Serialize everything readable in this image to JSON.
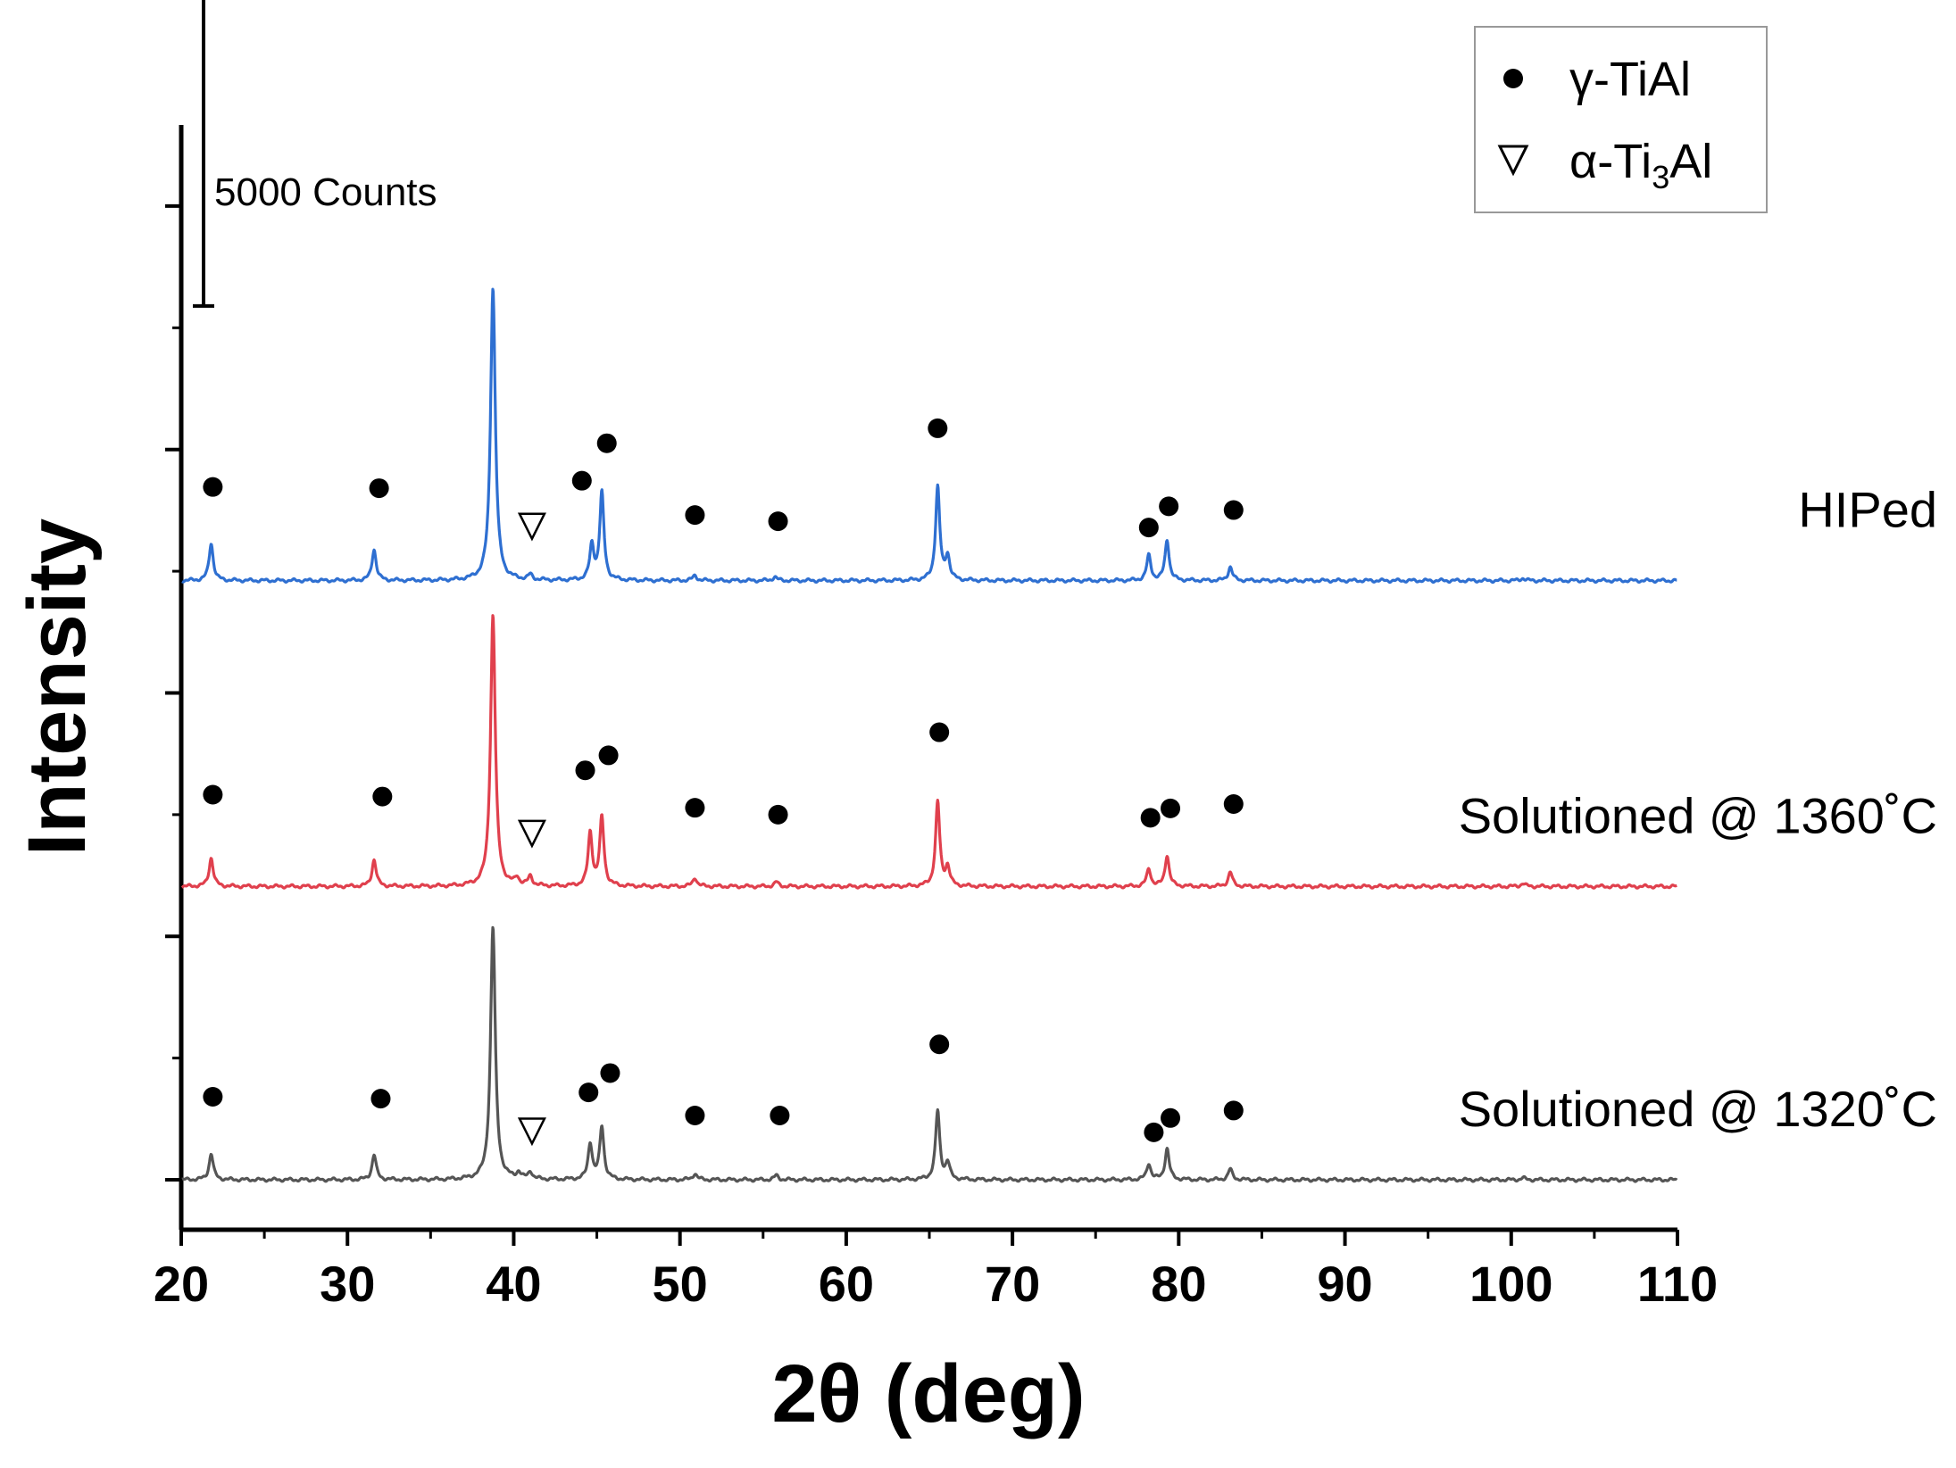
{
  "chart_data": {
    "type": "line",
    "title": "",
    "xlabel": "2θ (deg)",
    "ylabel": "Intensity",
    "xlim": [
      20,
      110
    ],
    "ylim": [
      -800,
      16900
    ],
    "x_ticks": [
      20,
      30,
      40,
      50,
      60,
      70,
      80,
      90,
      100,
      110
    ],
    "x_tick_labels": [
      "20",
      "30",
      "40",
      "50",
      "60",
      "70",
      "80",
      "90",
      "100",
      "110"
    ],
    "x_minor_step": 5,
    "y_tick_values": [
      0,
      1950,
      3900,
      5850,
      7800,
      9750,
      11700,
      13650,
      15600
    ],
    "scale_bar": {
      "label": "5000 Counts",
      "counts": 5000,
      "base": 14000
    },
    "legend": {
      "position": "top-right",
      "entries": [
        {
          "symbol": "circle",
          "label": "γ-TiAl",
          "label_prefix": "γ-TiAl",
          "label_sub": "",
          "label_suffix": ""
        },
        {
          "symbol": "triangle-down",
          "label": "α-Ti3Al",
          "label_prefix": "α-Ti",
          "label_sub": "3",
          "label_suffix": "Al"
        }
      ]
    },
    "series": [
      {
        "name": "HIPed",
        "label": "HIPed",
        "color": "#2e6fd1",
        "offset": 9600,
        "peaks": [
          [
            21.8,
            600
          ],
          [
            31.6,
            500
          ],
          [
            38.75,
            4700
          ],
          [
            41,
            80
          ],
          [
            44.7,
            550
          ],
          [
            45.3,
            1400
          ],
          [
            50.9,
            80
          ],
          [
            55.7,
            60
          ],
          [
            65.5,
            1500
          ],
          [
            66.1,
            380
          ],
          [
            78.2,
            400
          ],
          [
            79.3,
            650
          ],
          [
            83.1,
            220
          ],
          [
            100.7,
            40
          ]
        ],
        "markers": [
          {
            "type": "circle",
            "x": 21.9,
            "y": 11100
          },
          {
            "type": "circle",
            "x": 31.9,
            "y": 11080
          },
          {
            "type": "triangle",
            "x": 41.1,
            "y": 10470
          },
          {
            "type": "circle",
            "x": 44.1,
            "y": 11200
          },
          {
            "type": "circle",
            "x": 45.6,
            "y": 11800
          },
          {
            "type": "circle",
            "x": 50.9,
            "y": 10650
          },
          {
            "type": "circle",
            "x": 55.9,
            "y": 10550
          },
          {
            "type": "circle",
            "x": 65.5,
            "y": 12040
          },
          {
            "type": "circle",
            "x": 78.2,
            "y": 10450
          },
          {
            "type": "circle",
            "x": 79.4,
            "y": 10790
          },
          {
            "type": "circle",
            "x": 83.3,
            "y": 10730
          }
        ]
      },
      {
        "name": "Solutioned @ 1360°C",
        "label": "Solutioned @ 1360˚C",
        "color": "#e0404d",
        "offset": 4700,
        "peaks": [
          [
            21.8,
            460
          ],
          [
            31.6,
            430
          ],
          [
            38.75,
            4350
          ],
          [
            40.2,
            120
          ],
          [
            41,
            150
          ],
          [
            44.6,
            850
          ],
          [
            45.3,
            1100
          ],
          [
            50.9,
            140
          ],
          [
            55.8,
            70
          ],
          [
            65.5,
            1350
          ],
          [
            66.1,
            300
          ],
          [
            78.2,
            280
          ],
          [
            79.3,
            500
          ],
          [
            83.1,
            230
          ],
          [
            100.7,
            50
          ]
        ],
        "markers": [
          {
            "type": "circle",
            "x": 21.9,
            "y": 6170
          },
          {
            "type": "circle",
            "x": 32.1,
            "y": 6140
          },
          {
            "type": "triangle",
            "x": 41.1,
            "y": 5550
          },
          {
            "type": "circle",
            "x": 44.3,
            "y": 6560
          },
          {
            "type": "circle",
            "x": 45.7,
            "y": 6800
          },
          {
            "type": "circle",
            "x": 50.9,
            "y": 5960
          },
          {
            "type": "circle",
            "x": 55.9,
            "y": 5850
          },
          {
            "type": "circle",
            "x": 65.6,
            "y": 7170
          },
          {
            "type": "circle",
            "x": 78.3,
            "y": 5800
          },
          {
            "type": "circle",
            "x": 79.5,
            "y": 5950
          },
          {
            "type": "circle",
            "x": 83.3,
            "y": 6020
          }
        ]
      },
      {
        "name": "Solutioned @ 1320°C",
        "label": "Solutioned @ 1320˚C",
        "color": "#555555",
        "offset": 0,
        "peaks": [
          [
            21.8,
            420
          ],
          [
            31.6,
            400
          ],
          [
            38.75,
            4050
          ],
          [
            40.3,
            100
          ],
          [
            41,
            120
          ],
          [
            44.6,
            580
          ],
          [
            45.3,
            850
          ],
          [
            50.9,
            100
          ],
          [
            55.8,
            70
          ],
          [
            65.5,
            1100
          ],
          [
            66.1,
            260
          ],
          [
            78.2,
            260
          ],
          [
            79.3,
            500
          ],
          [
            83.1,
            170
          ],
          [
            100.7,
            30
          ]
        ],
        "markers": [
          {
            "type": "circle",
            "x": 21.9,
            "y": 1330
          },
          {
            "type": "circle",
            "x": 32.0,
            "y": 1300
          },
          {
            "type": "triangle",
            "x": 41.1,
            "y": 780
          },
          {
            "type": "circle",
            "x": 44.5,
            "y": 1400
          },
          {
            "type": "circle",
            "x": 45.8,
            "y": 1710
          },
          {
            "type": "circle",
            "x": 50.9,
            "y": 1030
          },
          {
            "type": "circle",
            "x": 56.0,
            "y": 1030
          },
          {
            "type": "circle",
            "x": 65.6,
            "y": 2170
          },
          {
            "type": "circle",
            "x": 78.5,
            "y": 760
          },
          {
            "type": "circle",
            "x": 79.5,
            "y": 990
          },
          {
            "type": "circle",
            "x": 83.3,
            "y": 1110
          }
        ]
      }
    ]
  }
}
